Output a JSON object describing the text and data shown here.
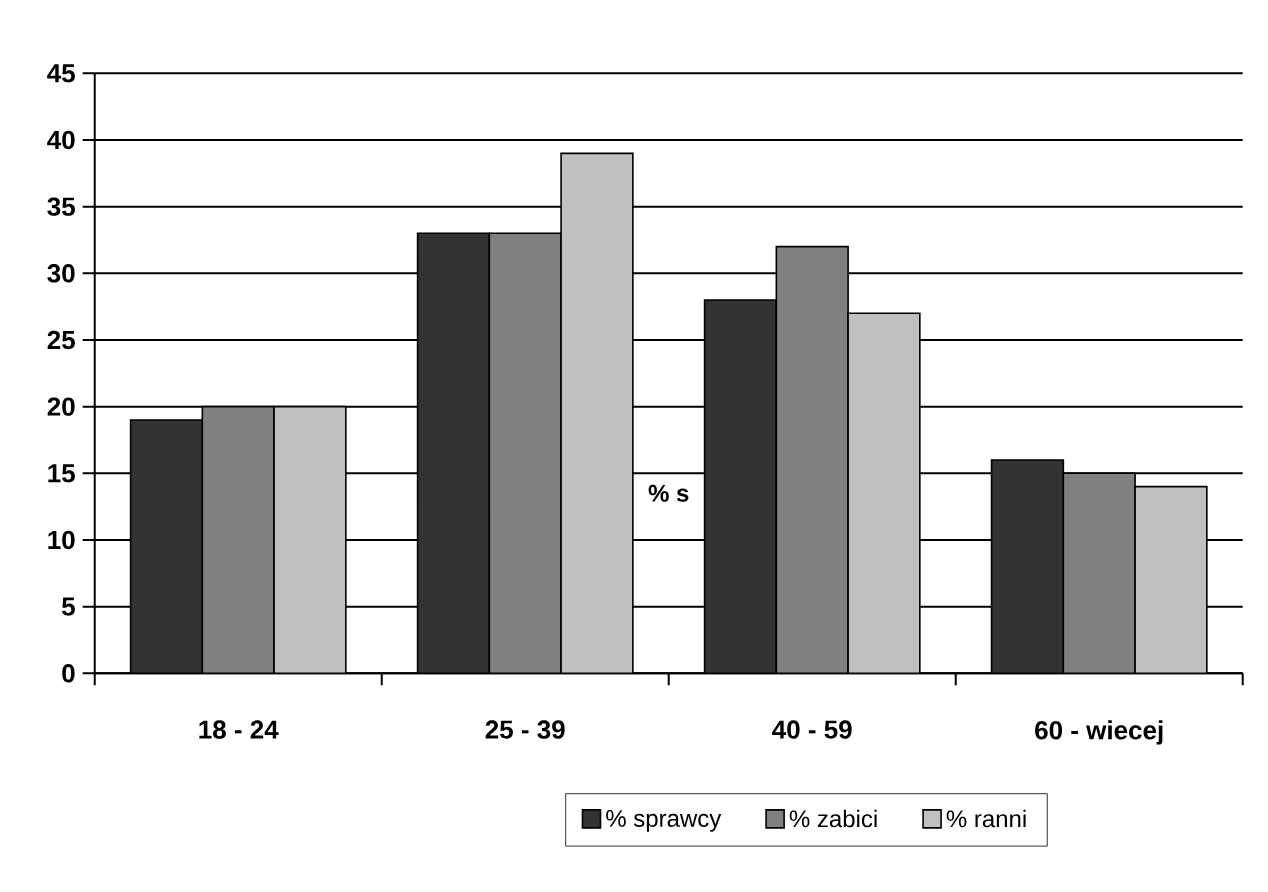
{
  "chart_data": {
    "type": "bar",
    "categories": [
      "18 - 24",
      "25 - 39",
      "40 - 59",
      "60 - wiecej"
    ],
    "series": [
      {
        "name": "% sprawcy",
        "color": "#333333",
        "values": [
          19,
          33,
          28,
          16
        ]
      },
      {
        "name": "% zabici",
        "color": "#808080",
        "values": [
          20,
          33,
          32,
          15
        ]
      },
      {
        "name": "% ranni",
        "color": "#c0c0c0",
        "values": [
          20,
          39,
          27,
          14
        ]
      }
    ],
    "ylim": [
      0,
      45
    ],
    "yticks": [
      0,
      5,
      10,
      15,
      20,
      25,
      30,
      35,
      40,
      45
    ],
    "grid": "y",
    "legend": "bottom",
    "annotations": [
      "% s"
    ]
  }
}
